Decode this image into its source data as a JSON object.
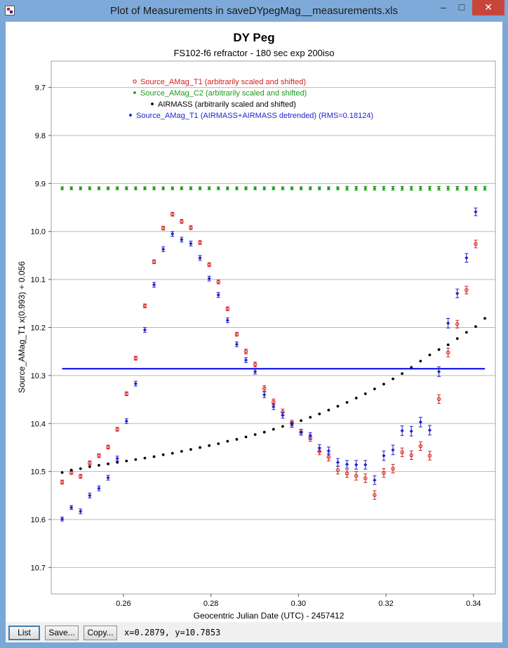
{
  "window": {
    "title": "Plot of Measurements in saveDYpegMag__measurements.xls",
    "controls": {
      "minimize": "–",
      "maximize": "□",
      "close": "✕"
    }
  },
  "toolbar": {
    "list_label": "List",
    "save_label": "Save...",
    "copy_label": "Copy...",
    "coord_readout": "x=0.2879, y=10.7853"
  },
  "chart_data": {
    "type": "scatter",
    "title": "DY Peg",
    "subtitle": "FS102-f6 refractor - 180 sec exp 200iso",
    "xlabel": "Geocentric Julian Date (UTC) - 2457412",
    "ylabel": "Source_AMag_T1 x(0.993) + 0.056",
    "xlim": [
      0.2435,
      0.345
    ],
    "ylim": [
      10.755,
      9.645
    ],
    "y_inverted": true,
    "x_ticks": [
      0.26,
      0.28,
      0.3,
      0.32,
      0.34
    ],
    "x_tick_labels": [
      "0.26",
      "0.28",
      "0.30",
      "0.32",
      "0.34"
    ],
    "y_ticks": [
      9.7,
      9.8,
      9.9,
      10.0,
      10.1,
      10.2,
      10.3,
      10.4,
      10.5,
      10.6,
      10.7
    ],
    "y_tick_labels": [
      "9.7",
      "9.8",
      "9.9",
      "10.0",
      "10.1",
      "10.2",
      "10.3",
      "10.4",
      "10.5",
      "10.6",
      "10.7"
    ],
    "grid": "horizontal",
    "legend_position": "top-center",
    "x": [
      0.246,
      0.2481,
      0.2502,
      0.2523,
      0.2544,
      0.2565,
      0.2586,
      0.2607,
      0.2628,
      0.2649,
      0.267,
      0.2691,
      0.2712,
      0.2733,
      0.2754,
      0.2775,
      0.2796,
      0.2817,
      0.2838,
      0.2859,
      0.288,
      0.2901,
      0.2922,
      0.2943,
      0.2964,
      0.2985,
      0.3006,
      0.3027,
      0.3048,
      0.3069,
      0.309,
      0.3111,
      0.3132,
      0.3153,
      0.3174,
      0.3195,
      0.3216,
      0.3237,
      0.3258,
      0.3279,
      0.33,
      0.3321,
      0.3342,
      0.3363,
      0.3384,
      0.3405,
      0.3426
    ],
    "series": [
      {
        "name": "Source_AMag_T1 (arbitrarily scaled and shifted)",
        "color": "#d42020",
        "marker": "open-circle",
        "values": [
          10.522,
          10.502,
          10.51,
          10.482,
          10.467,
          10.449,
          10.412,
          10.338,
          10.264,
          10.155,
          10.063,
          9.993,
          9.964,
          9.979,
          9.992,
          10.023,
          10.069,
          10.105,
          10.161,
          10.214,
          10.25,
          10.277,
          10.327,
          10.355,
          10.376,
          10.399,
          10.418,
          10.43,
          10.458,
          10.47,
          10.497,
          10.504,
          10.509,
          10.514,
          10.549,
          10.503,
          10.494,
          10.46,
          10.466,
          10.447,
          10.467,
          10.349,
          10.252,
          10.193,
          10.122,
          10.026,
          null
        ],
        "errors": [
          0.004,
          0.004,
          0.004,
          0.004,
          0.004,
          0.004,
          0.004,
          0.004,
          0.004,
          0.004,
          0.004,
          0.004,
          0.004,
          0.004,
          0.004,
          0.004,
          0.004,
          0.004,
          0.004,
          0.004,
          0.005,
          0.005,
          0.006,
          0.006,
          0.006,
          0.006,
          0.006,
          0.007,
          0.007,
          0.008,
          0.008,
          0.008,
          0.009,
          0.009,
          0.009,
          0.009,
          0.009,
          0.009,
          0.009,
          0.009,
          0.009,
          0.009,
          0.009,
          0.008,
          0.008,
          0.008,
          null
        ]
      },
      {
        "name": "Source_AMag_C2 (arbitrarily scaled and shifted)",
        "color": "#1a9a1a",
        "marker": "filled-circle",
        "values": [
          9.91,
          9.91,
          9.91,
          9.91,
          9.91,
          9.91,
          9.91,
          9.91,
          9.91,
          9.91,
          9.91,
          9.91,
          9.91,
          9.91,
          9.91,
          9.91,
          9.91,
          9.91,
          9.91,
          9.91,
          9.91,
          9.91,
          9.91,
          9.91,
          9.91,
          9.91,
          9.91,
          9.91,
          9.91,
          9.91,
          9.91,
          9.91,
          9.91,
          9.91,
          9.91,
          9.91,
          9.91,
          9.91,
          9.91,
          9.91,
          9.91,
          9.91,
          9.91,
          9.91,
          9.91,
          9.91,
          9.91
        ],
        "errors": [
          0.003,
          0.003,
          0.003,
          0.003,
          0.003,
          0.003,
          0.003,
          0.003,
          0.003,
          0.003,
          0.003,
          0.003,
          0.003,
          0.003,
          0.003,
          0.003,
          0.003,
          0.003,
          0.003,
          0.003,
          0.003,
          0.003,
          0.003,
          0.003,
          0.003,
          0.003,
          0.003,
          0.003,
          0.003,
          0.003,
          0.003,
          0.004,
          0.004,
          0.004,
          0.004,
          0.004,
          0.004,
          0.004,
          0.004,
          0.004,
          0.004,
          0.004,
          0.004,
          0.004,
          0.004,
          0.004,
          0.004
        ]
      },
      {
        "name": "AIRMASS (arbitrarily scaled and shifted)",
        "color": "#000000",
        "marker": "filled-circle",
        "x": [
          0.246,
          0.2481,
          0.2502,
          0.2523,
          0.2544,
          0.2565,
          0.2586,
          0.2607,
          0.2628,
          0.2649,
          0.267,
          0.2691,
          0.2712,
          0.2733,
          0.2754,
          0.2775,
          0.2796,
          0.2817,
          0.2838,
          0.2859,
          0.288,
          0.2901,
          0.2922,
          0.2943,
          0.2964,
          0.2985,
          0.3006,
          0.3027,
          0.3048,
          0.3069,
          0.309,
          0.3111,
          0.3132,
          0.3153,
          0.3174,
          0.3195,
          0.3216,
          0.3237,
          0.3258,
          0.3279,
          0.33,
          0.3321,
          0.3342,
          0.3363,
          0.3384,
          0.3405,
          0.3426
        ],
        "values": [
          10.502,
          10.497,
          10.494,
          10.49,
          10.487,
          10.484,
          10.481,
          10.478,
          10.475,
          10.472,
          10.469,
          10.465,
          10.462,
          10.458,
          10.454,
          10.45,
          10.446,
          10.442,
          10.437,
          10.433,
          10.428,
          10.423,
          10.418,
          10.412,
          10.406,
          10.4,
          10.394,
          10.387,
          10.38,
          10.372,
          10.364,
          10.356,
          10.347,
          10.338,
          10.328,
          10.318,
          10.307,
          10.296,
          10.283,
          10.27,
          10.257,
          10.246,
          10.236,
          10.223,
          10.21,
          10.198,
          10.181
        ]
      },
      {
        "name": "Source_AMag_T1 (AIRMASS+AIRMASS detrended) (RMS=0.18124)",
        "color": "#1f1fd0",
        "marker": "filled-diamond",
        "values": [
          10.599,
          10.575,
          10.583,
          10.55,
          10.535,
          10.513,
          10.473,
          10.395,
          10.317,
          10.205,
          10.111,
          10.037,
          10.005,
          10.017,
          10.025,
          10.055,
          10.098,
          10.132,
          10.185,
          10.235,
          10.268,
          10.292,
          10.34,
          10.365,
          10.383,
          10.402,
          10.418,
          10.426,
          10.451,
          10.457,
          10.481,
          10.485,
          10.486,
          10.486,
          10.518,
          10.467,
          10.455,
          10.415,
          10.416,
          10.397,
          10.414,
          10.292,
          10.191,
          10.129,
          10.055,
          9.959,
          null
        ],
        "errors": [
          0.004,
          0.004,
          0.005,
          0.005,
          0.005,
          0.005,
          0.005,
          0.005,
          0.005,
          0.005,
          0.005,
          0.005,
          0.005,
          0.005,
          0.005,
          0.005,
          0.005,
          0.005,
          0.005,
          0.005,
          0.005,
          0.005,
          0.006,
          0.006,
          0.006,
          0.006,
          0.006,
          0.007,
          0.007,
          0.008,
          0.008,
          0.008,
          0.009,
          0.009,
          0.009,
          0.01,
          0.01,
          0.01,
          0.01,
          0.01,
          0.01,
          0.01,
          0.01,
          0.009,
          0.009,
          0.008,
          null
        ]
      }
    ],
    "reference_line": {
      "y": 10.286,
      "x_start": 0.246,
      "x_end": 0.3426,
      "color": "#0000ee"
    }
  }
}
